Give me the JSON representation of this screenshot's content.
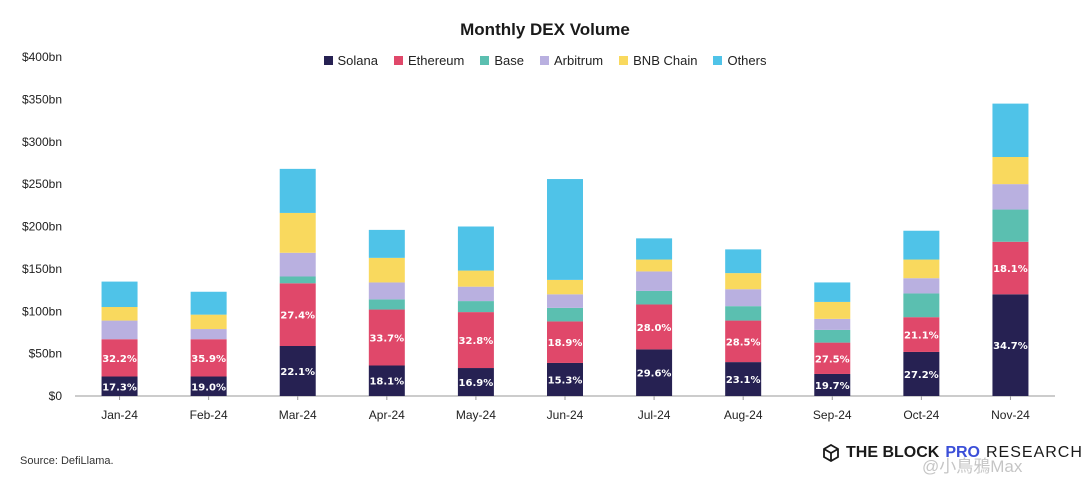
{
  "chart_data": {
    "type": "bar",
    "stacked": true,
    "title": "Monthly DEX Volume",
    "xlabel": "",
    "ylabel": "",
    "ylim": [
      0,
      400
    ],
    "y_ticks": [
      0,
      50,
      100,
      150,
      200,
      250,
      300,
      350,
      400
    ],
    "y_tick_labels": [
      "$0",
      "$50bn",
      "$100bn",
      "$150bn",
      "$200bn",
      "$250bn",
      "$300bn",
      "$350bn",
      "$400bn"
    ],
    "legend_position": "top-center",
    "grid": false,
    "categories": [
      "Jan-24",
      "Feb-24",
      "Mar-24",
      "Apr-24",
      "May-24",
      "Jun-24",
      "Jul-24",
      "Aug-24",
      "Sep-24",
      "Oct-24",
      "Nov-24"
    ],
    "series": [
      {
        "name": "Solana",
        "color": "#262152",
        "values": [
          23,
          23,
          59,
          36,
          33,
          39,
          55,
          40,
          26,
          52,
          120
        ],
        "labels": [
          "17.3%",
          "19.0%",
          "22.1%",
          "18.1%",
          "16.9%",
          "15.3%",
          "29.6%",
          "23.1%",
          "19.7%",
          "27.2%",
          "34.7%"
        ]
      },
      {
        "name": "Ethereum",
        "color": "#e0486a",
        "values": [
          44,
          44,
          74,
          66,
          66,
          49,
          53,
          49,
          37,
          41,
          62
        ],
        "labels": [
          "32.2%",
          "35.9%",
          "27.4%",
          "33.7%",
          "32.8%",
          "18.9%",
          "28.0%",
          "28.5%",
          "27.5%",
          "21.1%",
          "18.1%"
        ]
      },
      {
        "name": "Base",
        "color": "#5bbfb0",
        "values": [
          0,
          0,
          8,
          12,
          13,
          16,
          16,
          17,
          15,
          28,
          38
        ],
        "labels": [
          "",
          "",
          "",
          "",
          "",
          "",
          "",
          "",
          "",
          "",
          ""
        ]
      },
      {
        "name": "Arbitrum",
        "color": "#b9b0e0",
        "values": [
          22,
          12,
          28,
          20,
          17,
          16,
          23,
          20,
          13,
          18,
          30
        ],
        "labels": [
          "",
          "",
          "",
          "",
          "",
          "",
          "",
          "",
          "",
          "",
          ""
        ]
      },
      {
        "name": "BNB Chain",
        "color": "#f9d95e",
        "values": [
          16,
          17,
          47,
          29,
          19,
          17,
          14,
          19,
          20,
          22,
          32
        ],
        "labels": [
          "",
          "",
          "",
          "",
          "",
          "",
          "",
          "",
          "",
          "",
          ""
        ]
      },
      {
        "name": "Others",
        "color": "#4fc3e8",
        "values": [
          30,
          27,
          52,
          33,
          52,
          119,
          25,
          28,
          23,
          34,
          63
        ],
        "labels": [
          "",
          "",
          "",
          "",
          "",
          "",
          "",
          "",
          "",
          "",
          ""
        ]
      }
    ]
  },
  "footer": {
    "source": "Source: DefiLlama.",
    "brand_name": "THE BLOCK",
    "brand_pro": "PRO",
    "brand_research": "RESEARCH",
    "watermark": "@小鳥鴉Max"
  }
}
